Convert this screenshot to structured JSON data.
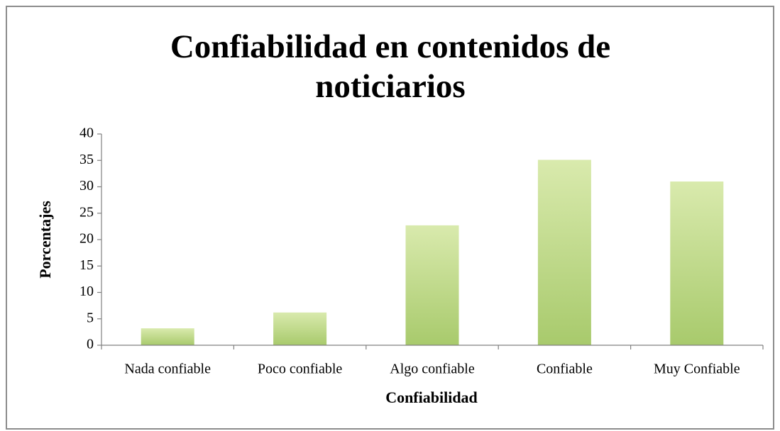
{
  "chart_data": {
    "type": "bar",
    "title": "Confiabilidad en contenidos de noticiarios",
    "x_label": "Confiabilidad",
    "y_label": "Porcentajes",
    "categories": [
      "Nada confiable",
      "Poco confiable",
      "Algo confiable",
      "Confiable",
      "Muy Confiable"
    ],
    "values": [
      3.2,
      6.2,
      22.7,
      35.1,
      31
    ],
    "color": "#b5d47e",
    "ylim": [
      0,
      40
    ],
    "yticks": [
      0,
      5,
      10,
      15,
      20,
      25,
      30,
      35,
      40
    ],
    "grid": false
  }
}
